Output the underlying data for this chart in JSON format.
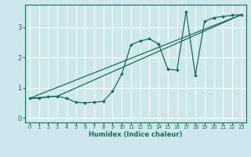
{
  "xlabel": "Humidex (Indice chaleur)",
  "bg_color": "#cde8ec",
  "grid_color": "#ffffff",
  "line_color": "#1a6b5a",
  "xlim": [
    -0.5,
    23.5
  ],
  "ylim": [
    -0.15,
    3.75
  ],
  "xticks": [
    0,
    1,
    2,
    3,
    4,
    5,
    6,
    7,
    8,
    9,
    10,
    11,
    12,
    13,
    14,
    15,
    16,
    17,
    18,
    19,
    20,
    21,
    22,
    23
  ],
  "yticks": [
    0,
    1,
    2,
    3
  ],
  "line1_x": [
    0,
    1,
    2,
    3,
    4,
    5,
    6,
    7,
    8,
    9,
    10,
    11,
    12,
    13,
    14,
    15,
    16,
    17,
    18,
    19,
    20,
    21,
    22,
    23
  ],
  "line1_y": [
    0.65,
    0.65,
    0.7,
    0.72,
    0.65,
    0.52,
    0.5,
    0.52,
    0.55,
    0.88,
    1.45,
    2.42,
    2.55,
    2.62,
    2.45,
    1.62,
    1.58,
    3.52,
    1.42,
    3.2,
    3.32,
    3.36,
    3.4,
    3.42
  ],
  "line2_x": [
    0,
    3,
    23
  ],
  "line2_y": [
    0.65,
    0.72,
    3.42
  ],
  "line3_x": [
    0,
    23
  ],
  "line3_y": [
    0.65,
    3.42
  ]
}
